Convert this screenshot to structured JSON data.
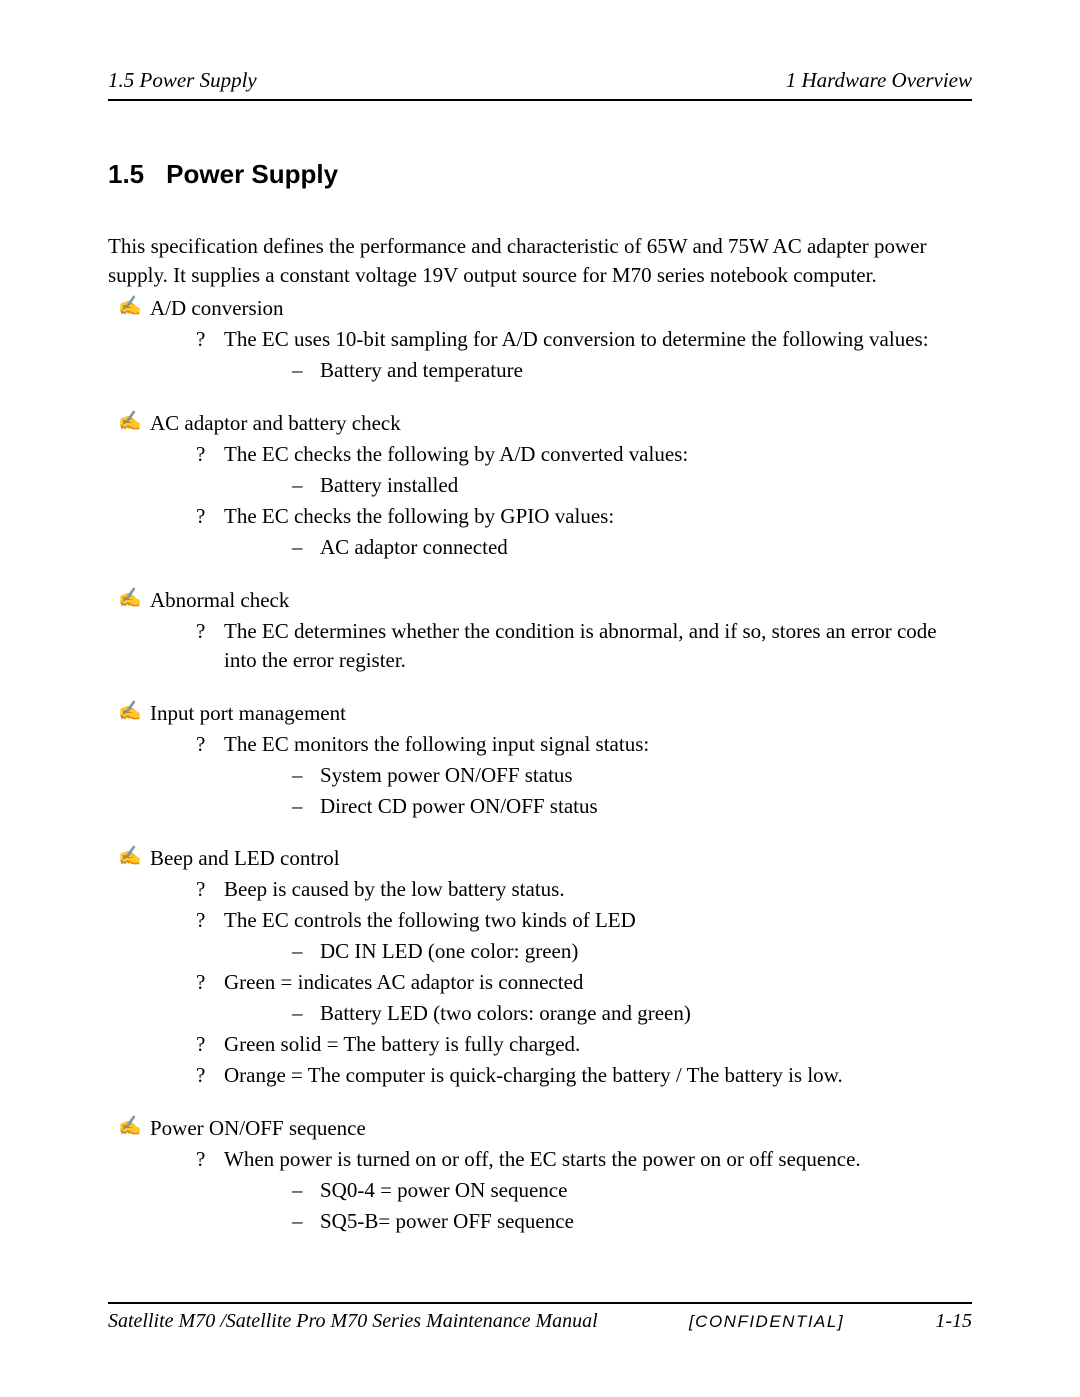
{
  "header": {
    "left": "1.5  Power Supply",
    "right": "1  Hardware Overview"
  },
  "heading": {
    "number": "1.5",
    "title": "Power Supply"
  },
  "intro": "This specification defines the performance and characteristic of 65W and 75W AC adapter power supply. It supplies a constant voltage 19V output source for M70 series notebook computer.",
  "sections": [
    {
      "label": "A/D conversion",
      "items": [
        {
          "text": "The EC uses 10-bit sampling for A/D conversion to determine the following values:",
          "subitems": [
            "Battery and temperature"
          ]
        }
      ]
    },
    {
      "label": "AC adaptor and battery check",
      "items": [
        {
          "text": "The EC checks the following by A/D converted values:",
          "subitems": [
            "Battery installed"
          ]
        },
        {
          "text": "The EC checks the following by GPIO values:",
          "subitems": [
            "AC adaptor connected"
          ]
        }
      ]
    },
    {
      "label": "Abnormal check",
      "items": [
        {
          "text": "The EC determines whether the condition is abnormal, and if so, stores an error code into the error register.",
          "subitems": []
        }
      ]
    },
    {
      "label": "Input port management",
      "items": [
        {
          "text": "The EC monitors the following input signal status:",
          "subitems": [
            "System power ON/OFF status",
            "Direct CD power ON/OFF status"
          ]
        }
      ]
    },
    {
      "label": "Beep and LED control",
      "items": [
        {
          "text": "Beep is caused by the low battery status.",
          "subitems": []
        },
        {
          "text": "The EC controls the following two kinds of LED",
          "subitems": [
            "DC IN LED (one color: green)"
          ]
        },
        {
          "text": "Green = indicates AC adaptor is connected",
          "subitems": [
            "Battery LED (two colors: orange and green)"
          ]
        },
        {
          "text": "Green solid = The battery is fully charged.",
          "subitems": []
        },
        {
          "text": "Orange = The computer is quick-charging the battery / The battery is low.",
          "subitems": []
        }
      ]
    },
    {
      "label": "Power ON/OFF sequence",
      "items": [
        {
          "text": "When power is turned on or off, the EC starts the power on or off sequence.",
          "subitems": [
            "SQ0-4 = power ON sequence",
            "SQ5-B= power OFF sequence"
          ]
        }
      ]
    }
  ],
  "footer": {
    "left": "Satellite M70 /Satellite Pro M70 Series Maintenance Manual",
    "mid": "[CONFIDENTIAL]",
    "right": "1-15"
  }
}
